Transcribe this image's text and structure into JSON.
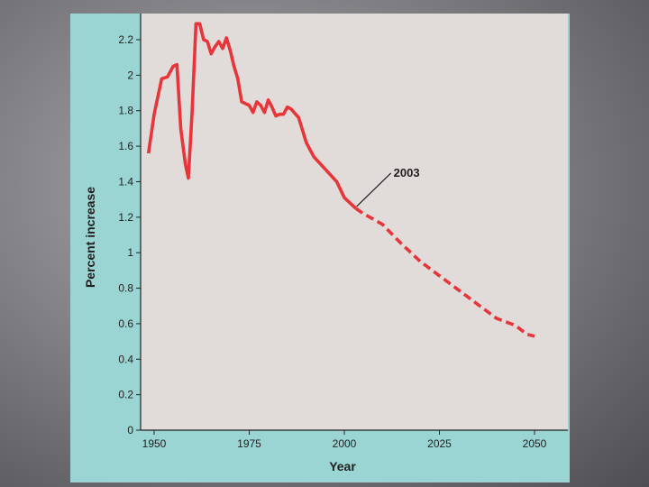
{
  "chart_data": {
    "type": "line",
    "xlabel": "Year",
    "ylabel": "Percent increase",
    "xlim": [
      1947,
      2058
    ],
    "ylim": [
      0,
      2.3
    ],
    "x_ticks": [
      1950,
      1975,
      2000,
      2025,
      2050
    ],
    "x_tick_labels": [
      "1950",
      "1975",
      "2000",
      "2025",
      "2050"
    ],
    "y_ticks": [
      0,
      0.2,
      0.4,
      0.6,
      0.8,
      1,
      1.2,
      1.4,
      1.6,
      1.8,
      2,
      2.2
    ],
    "y_tick_labels": [
      "0",
      "0.2",
      "0.4",
      "0.6",
      "0.8",
      "1",
      "1.2",
      "1.4",
      "1.6",
      "1.8",
      "2",
      "2.2"
    ],
    "grid": false,
    "series": [
      {
        "style": "solid",
        "color": "#e8353a",
        "x": [
          1948.5,
          1950,
          1952,
          1953.5,
          1955,
          1956,
          1957,
          1958.2,
          1959,
          1960,
          1961,
          1962,
          1963,
          1964,
          1965,
          1966,
          1967,
          1968,
          1969,
          1970,
          1971,
          1972,
          1973,
          1974,
          1975,
          1976,
          1977,
          1978,
          1979,
          1980,
          1981,
          1982,
          1983,
          1984,
          1985,
          1986,
          1988,
          1990,
          1992,
          1995,
          1998,
          2000,
          2003
        ],
        "y": [
          1.56,
          1.78,
          1.98,
          1.99,
          2.05,
          2.06,
          1.7,
          1.5,
          1.42,
          1.8,
          2.29,
          2.29,
          2.2,
          2.19,
          2.12,
          2.16,
          2.19,
          2.15,
          2.21,
          2.14,
          2.05,
          1.98,
          1.85,
          1.84,
          1.83,
          1.79,
          1.85,
          1.83,
          1.79,
          1.86,
          1.82,
          1.77,
          1.78,
          1.78,
          1.82,
          1.81,
          1.76,
          1.62,
          1.54,
          1.47,
          1.4,
          1.31,
          1.25
        ]
      },
      {
        "style": "dashed",
        "color": "#e8353a",
        "x": [
          2003,
          2005,
          2010,
          2015,
          2020,
          2025,
          2030,
          2035,
          2040,
          2045,
          2048,
          2050
        ],
        "y": [
          1.25,
          1.22,
          1.16,
          1.05,
          0.95,
          0.87,
          0.79,
          0.71,
          0.63,
          0.59,
          0.54,
          0.53
        ]
      }
    ],
    "annotations": [
      {
        "text": "2003",
        "x": 2003,
        "y": 1.25
      }
    ]
  }
}
